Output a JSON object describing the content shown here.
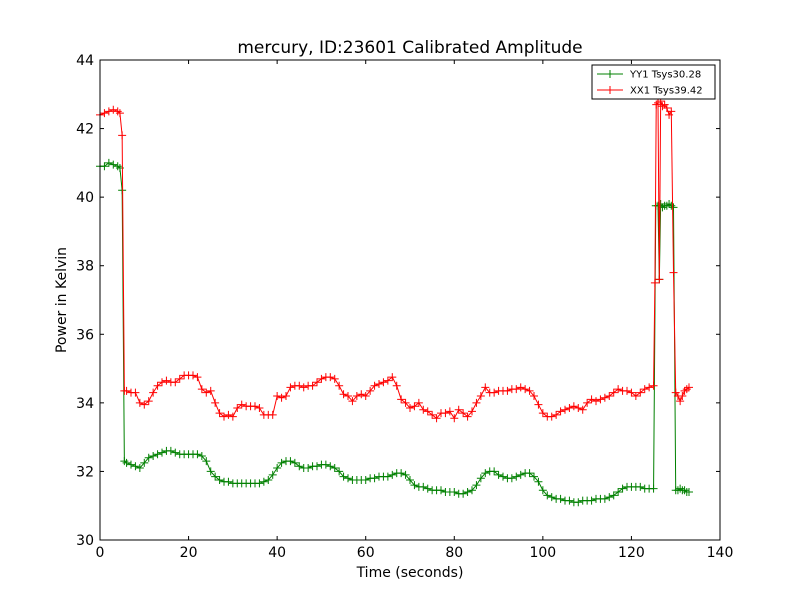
{
  "chart_data": {
    "type": "line",
    "title": "mercury, ID:23601 Calibrated Amplitude",
    "xlabel": "Time (seconds)",
    "ylabel": "Power in Kelvin",
    "xlim": [
      0,
      140
    ],
    "ylim": [
      30,
      44
    ],
    "xticks": [
      0,
      20,
      40,
      60,
      80,
      100,
      120,
      140
    ],
    "yticks": [
      30,
      32,
      34,
      36,
      38,
      40,
      42,
      44
    ],
    "grid": false,
    "legend_position": "top-right",
    "marker": "+",
    "series": [
      {
        "name": "YY1 Tsys30.28",
        "color": "#008000",
        "points": [
          [
            0,
            40.9
          ],
          [
            1,
            40.9
          ],
          [
            2,
            41.0
          ],
          [
            3,
            40.95
          ],
          [
            4,
            40.9
          ],
          [
            4.5,
            40.85
          ],
          [
            5,
            40.2
          ],
          [
            5.5,
            32.3
          ],
          [
            6,
            32.25
          ],
          [
            7,
            32.2
          ],
          [
            8,
            32.15
          ],
          [
            9,
            32.1
          ],
          [
            10,
            32.25
          ],
          [
            11,
            32.4
          ],
          [
            12,
            32.45
          ],
          [
            13,
            32.5
          ],
          [
            14,
            32.55
          ],
          [
            15,
            32.6
          ],
          [
            16,
            32.6
          ],
          [
            17,
            32.55
          ],
          [
            18,
            32.5
          ],
          [
            19,
            32.5
          ],
          [
            20,
            32.5
          ],
          [
            21,
            32.5
          ],
          [
            22,
            32.5
          ],
          [
            23,
            32.45
          ],
          [
            24,
            32.3
          ],
          [
            25,
            32.0
          ],
          [
            26,
            31.85
          ],
          [
            27,
            31.75
          ],
          [
            28,
            31.7
          ],
          [
            29,
            31.7
          ],
          [
            30,
            31.65
          ],
          [
            31,
            31.65
          ],
          [
            32,
            31.65
          ],
          [
            33,
            31.65
          ],
          [
            34,
            31.65
          ],
          [
            35,
            31.65
          ],
          [
            36,
            31.65
          ],
          [
            37,
            31.7
          ],
          [
            38,
            31.75
          ],
          [
            39,
            31.9
          ],
          [
            40,
            32.1
          ],
          [
            41,
            32.25
          ],
          [
            42,
            32.3
          ],
          [
            43,
            32.3
          ],
          [
            44,
            32.25
          ],
          [
            45,
            32.15
          ],
          [
            46,
            32.1
          ],
          [
            47,
            32.1
          ],
          [
            48,
            32.15
          ],
          [
            49,
            32.15
          ],
          [
            50,
            32.2
          ],
          [
            51,
            32.2
          ],
          [
            52,
            32.15
          ],
          [
            53,
            32.1
          ],
          [
            54,
            32.0
          ],
          [
            55,
            31.85
          ],
          [
            56,
            31.8
          ],
          [
            57,
            31.75
          ],
          [
            58,
            31.75
          ],
          [
            59,
            31.75
          ],
          [
            60,
            31.75
          ],
          [
            61,
            31.8
          ],
          [
            62,
            31.8
          ],
          [
            63,
            31.85
          ],
          [
            64,
            31.85
          ],
          [
            65,
            31.85
          ],
          [
            66,
            31.9
          ],
          [
            67,
            31.95
          ],
          [
            68,
            31.95
          ],
          [
            69,
            31.9
          ],
          [
            70,
            31.75
          ],
          [
            71,
            31.6
          ],
          [
            72,
            31.55
          ],
          [
            73,
            31.55
          ],
          [
            74,
            31.5
          ],
          [
            75,
            31.45
          ],
          [
            76,
            31.45
          ],
          [
            77,
            31.45
          ],
          [
            78,
            31.4
          ],
          [
            79,
            31.4
          ],
          [
            80,
            31.4
          ],
          [
            81,
            31.35
          ],
          [
            82,
            31.35
          ],
          [
            83,
            31.4
          ],
          [
            84,
            31.45
          ],
          [
            85,
            31.6
          ],
          [
            86,
            31.8
          ],
          [
            87,
            31.95
          ],
          [
            88,
            32.0
          ],
          [
            89,
            32.0
          ],
          [
            90,
            31.9
          ],
          [
            91,
            31.85
          ],
          [
            92,
            31.8
          ],
          [
            93,
            31.8
          ],
          [
            94,
            31.85
          ],
          [
            95,
            31.9
          ],
          [
            96,
            31.95
          ],
          [
            97,
            31.95
          ],
          [
            98,
            31.85
          ],
          [
            99,
            31.7
          ],
          [
            100,
            31.45
          ],
          [
            101,
            31.3
          ],
          [
            102,
            31.25
          ],
          [
            103,
            31.2
          ],
          [
            104,
            31.2
          ],
          [
            105,
            31.15
          ],
          [
            106,
            31.15
          ],
          [
            107,
            31.1
          ],
          [
            108,
            31.1
          ],
          [
            109,
            31.15
          ],
          [
            110,
            31.15
          ],
          [
            111,
            31.15
          ],
          [
            112,
            31.2
          ],
          [
            113,
            31.2
          ],
          [
            114,
            31.2
          ],
          [
            115,
            31.25
          ],
          [
            116,
            31.3
          ],
          [
            117,
            31.4
          ],
          [
            118,
            31.5
          ],
          [
            119,
            31.55
          ],
          [
            120,
            31.55
          ],
          [
            121,
            31.55
          ],
          [
            122,
            31.55
          ],
          [
            123,
            31.5
          ],
          [
            124,
            31.5
          ],
          [
            125,
            31.5
          ],
          [
            125.5,
            39.75
          ],
          [
            126,
            39.75
          ],
          [
            126.3,
            37.6
          ],
          [
            126.6,
            39.8
          ],
          [
            127,
            39.7
          ],
          [
            127.5,
            39.75
          ],
          [
            128,
            39.75
          ],
          [
            128.5,
            39.8
          ],
          [
            129,
            39.75
          ],
          [
            129.5,
            39.7
          ],
          [
            130,
            31.45
          ],
          [
            130.5,
            31.45
          ],
          [
            131,
            31.5
          ],
          [
            131.5,
            31.45
          ],
          [
            132,
            31.45
          ],
          [
            132.5,
            31.4
          ],
          [
            133,
            31.4
          ]
        ]
      },
      {
        "name": "XX1 Tsys39.42",
        "color": "#ff0000",
        "points": [
          [
            0,
            42.4
          ],
          [
            1,
            42.45
          ],
          [
            2,
            42.5
          ],
          [
            3,
            42.55
          ],
          [
            4,
            42.5
          ],
          [
            4.5,
            42.45
          ],
          [
            5,
            41.8
          ],
          [
            5.5,
            34.35
          ],
          [
            6,
            34.35
          ],
          [
            7,
            34.3
          ],
          [
            8,
            34.3
          ],
          [
            9,
            34.0
          ],
          [
            10,
            33.95
          ],
          [
            11,
            34.05
          ],
          [
            12,
            34.3
          ],
          [
            13,
            34.5
          ],
          [
            14,
            34.6
          ],
          [
            15,
            34.65
          ],
          [
            16,
            34.6
          ],
          [
            17,
            34.6
          ],
          [
            18,
            34.7
          ],
          [
            19,
            34.8
          ],
          [
            20,
            34.8
          ],
          [
            21,
            34.8
          ],
          [
            22,
            34.75
          ],
          [
            23,
            34.4
          ],
          [
            24,
            34.3
          ],
          [
            25,
            34.35
          ],
          [
            26,
            34.0
          ],
          [
            27,
            33.7
          ],
          [
            28,
            33.6
          ],
          [
            29,
            33.65
          ],
          [
            30,
            33.6
          ],
          [
            31,
            33.85
          ],
          [
            32,
            33.95
          ],
          [
            33,
            33.9
          ],
          [
            34,
            33.9
          ],
          [
            35,
            33.9
          ],
          [
            36,
            33.85
          ],
          [
            37,
            33.65
          ],
          [
            38,
            33.65
          ],
          [
            39,
            33.65
          ],
          [
            40,
            34.2
          ],
          [
            41,
            34.15
          ],
          [
            42,
            34.2
          ],
          [
            43,
            34.45
          ],
          [
            44,
            34.5
          ],
          [
            45,
            34.5
          ],
          [
            46,
            34.45
          ],
          [
            47,
            34.5
          ],
          [
            48,
            34.5
          ],
          [
            49,
            34.6
          ],
          [
            50,
            34.7
          ],
          [
            51,
            34.75
          ],
          [
            52,
            34.75
          ],
          [
            53,
            34.7
          ],
          [
            54,
            34.5
          ],
          [
            55,
            34.25
          ],
          [
            56,
            34.2
          ],
          [
            57,
            34.05
          ],
          [
            58,
            34.2
          ],
          [
            59,
            34.25
          ],
          [
            60,
            34.2
          ],
          [
            61,
            34.35
          ],
          [
            62,
            34.5
          ],
          [
            63,
            34.55
          ],
          [
            64,
            34.6
          ],
          [
            65,
            34.65
          ],
          [
            66,
            34.75
          ],
          [
            67,
            34.5
          ],
          [
            68,
            34.1
          ],
          [
            69,
            34.0
          ],
          [
            70,
            33.85
          ],
          [
            71,
            33.9
          ],
          [
            72,
            34.0
          ],
          [
            73,
            33.8
          ],
          [
            74,
            33.75
          ],
          [
            75,
            33.65
          ],
          [
            76,
            33.55
          ],
          [
            77,
            33.7
          ],
          [
            78,
            33.7
          ],
          [
            79,
            33.75
          ],
          [
            80,
            33.55
          ],
          [
            81,
            33.8
          ],
          [
            82,
            33.7
          ],
          [
            83,
            33.6
          ],
          [
            84,
            33.75
          ],
          [
            85,
            34.0
          ],
          [
            86,
            34.2
          ],
          [
            87,
            34.45
          ],
          [
            88,
            34.3
          ],
          [
            89,
            34.3
          ],
          [
            90,
            34.35
          ],
          [
            91,
            34.35
          ],
          [
            92,
            34.35
          ],
          [
            93,
            34.4
          ],
          [
            94,
            34.4
          ],
          [
            95,
            34.45
          ],
          [
            96,
            34.4
          ],
          [
            97,
            34.35
          ],
          [
            98,
            34.2
          ],
          [
            99,
            33.95
          ],
          [
            100,
            33.7
          ],
          [
            101,
            33.6
          ],
          [
            102,
            33.6
          ],
          [
            103,
            33.65
          ],
          [
            104,
            33.75
          ],
          [
            105,
            33.8
          ],
          [
            106,
            33.85
          ],
          [
            107,
            33.9
          ],
          [
            108,
            33.85
          ],
          [
            109,
            33.8
          ],
          [
            110,
            34.0
          ],
          [
            111,
            34.1
          ],
          [
            112,
            34.05
          ],
          [
            113,
            34.1
          ],
          [
            114,
            34.15
          ],
          [
            115,
            34.2
          ],
          [
            116,
            34.3
          ],
          [
            117,
            34.4
          ],
          [
            118,
            34.35
          ],
          [
            119,
            34.35
          ],
          [
            120,
            34.3
          ],
          [
            121,
            34.2
          ],
          [
            122,
            34.3
          ],
          [
            123,
            34.4
          ],
          [
            124,
            34.45
          ],
          [
            125,
            34.5
          ],
          [
            125.3,
            37.5
          ],
          [
            125.6,
            42.7
          ],
          [
            126,
            42.75
          ],
          [
            126.3,
            37.6
          ],
          [
            126.6,
            42.8
          ],
          [
            127,
            42.65
          ],
          [
            127.5,
            42.7
          ],
          [
            128,
            42.6
          ],
          [
            128.5,
            42.4
          ],
          [
            129,
            42.5
          ],
          [
            129.5,
            37.8
          ],
          [
            130,
            34.3
          ],
          [
            130.5,
            34.2
          ],
          [
            131,
            34.05
          ],
          [
            131.5,
            34.2
          ],
          [
            132,
            34.35
          ],
          [
            132.5,
            34.4
          ],
          [
            133,
            34.45
          ]
        ]
      }
    ]
  }
}
